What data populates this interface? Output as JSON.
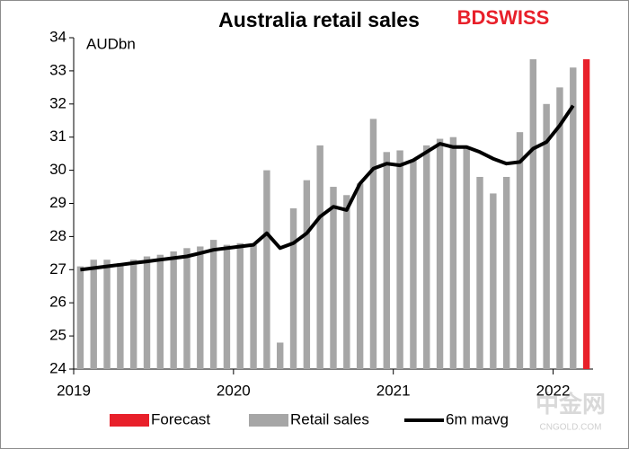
{
  "chart_data": {
    "type": "bar-line",
    "title": "Australia retail sales",
    "brand": "BDSWISS",
    "unit_label": "AUDbn",
    "watermark": "中金网",
    "watermark_sub": "CNGOLD.COM",
    "categories": [
      "2019",
      null,
      null,
      null,
      null,
      null,
      null,
      null,
      null,
      null,
      null,
      null,
      "2020",
      null,
      null,
      null,
      null,
      null,
      null,
      null,
      null,
      null,
      null,
      null,
      "2021",
      null,
      null,
      null,
      null,
      null,
      null,
      null,
      null,
      null,
      null,
      null,
      "2022",
      null,
      null
    ],
    "series": [
      {
        "name": "Forecast",
        "kind": "bar",
        "color": "#e8202a",
        "values": [
          null,
          null,
          null,
          null,
          null,
          null,
          null,
          null,
          null,
          null,
          null,
          null,
          null,
          null,
          null,
          null,
          null,
          null,
          null,
          null,
          null,
          null,
          null,
          null,
          null,
          null,
          null,
          null,
          null,
          null,
          null,
          null,
          null,
          null,
          null,
          null,
          null,
          null,
          33.35
        ]
      },
      {
        "name": "Retail sales",
        "kind": "bar",
        "color": "#a6a6a6",
        "values": [
          27.1,
          27.3,
          27.3,
          27.2,
          27.3,
          27.4,
          27.45,
          27.55,
          27.65,
          27.7,
          27.9,
          27.75,
          27.8,
          27.75,
          30.0,
          24.8,
          28.85,
          29.7,
          30.75,
          29.5,
          29.25,
          29.6,
          31.55,
          30.55,
          30.6,
          30.3,
          30.75,
          30.95,
          31.0,
          30.7,
          29.8,
          29.3,
          29.8,
          31.15,
          33.35,
          32.0,
          32.5,
          33.1,
          null
        ]
      },
      {
        "name": "6m mavg",
        "kind": "line",
        "color": "#000000",
        "values": [
          27.0,
          27.05,
          27.1,
          27.15,
          27.2,
          27.25,
          27.3,
          27.35,
          27.4,
          27.5,
          27.6,
          27.65,
          27.7,
          27.75,
          28.1,
          27.65,
          27.8,
          28.1,
          28.6,
          28.9,
          28.8,
          29.6,
          30.05,
          30.2,
          30.15,
          30.3,
          30.55,
          30.8,
          30.7,
          30.7,
          30.55,
          30.35,
          30.2,
          30.25,
          30.65,
          30.85,
          31.35,
          31.95,
          null
        ]
      }
    ],
    "ylim": [
      24,
      34
    ],
    "yticks": [
      24,
      25,
      26,
      27,
      28,
      29,
      30,
      31,
      32,
      33,
      34
    ],
    "grid": false
  }
}
